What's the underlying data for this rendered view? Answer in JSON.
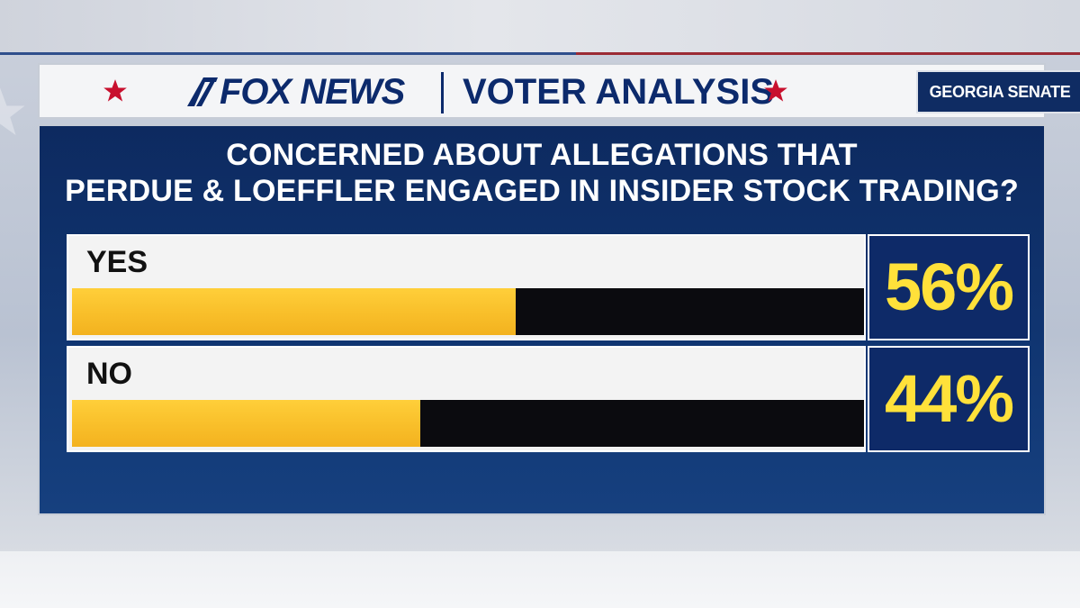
{
  "header": {
    "logo_text": "FOX NEWS",
    "section": "VOTER ANALYSIS",
    "tag": "GEORGIA SENATE"
  },
  "colors": {
    "navy": "#0d2a60",
    "bar_fill": "#f9c02b",
    "bar_track": "#0b0b0f",
    "value_text": "#ffe13a",
    "star_red": "#c8102e"
  },
  "chart_data": {
    "type": "bar",
    "orientation": "horizontal",
    "title_lines": [
      "CONCERNED ABOUT ALLEGATIONS THAT",
      "PERDUE & LOEFFLER ENGAGED IN INSIDER STOCK TRADING?"
    ],
    "categories": [
      "YES",
      "NO"
    ],
    "values": [
      56,
      44
    ],
    "value_labels": [
      "56%",
      "44%"
    ],
    "xlim": [
      0,
      100
    ],
    "grid": false,
    "legend": "none"
  }
}
